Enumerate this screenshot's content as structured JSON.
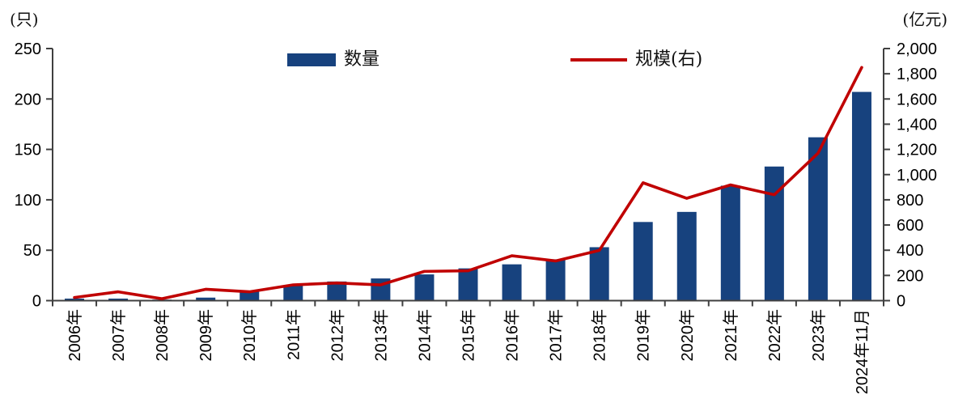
{
  "chart_data": {
    "type": "bar",
    "subtype": "bar+line dual axis",
    "title": "",
    "categories": [
      "2006年",
      "2007年",
      "2008年",
      "2009年",
      "2010年",
      "2011年",
      "2012年",
      "2013年",
      "2014年",
      "2015年",
      "2016年",
      "2017年",
      "2018年",
      "2019年",
      "2020年",
      "2021年",
      "2022年",
      "2023年",
      "2024年11月"
    ],
    "series": [
      {
        "name": "数量",
        "type": "bar",
        "axis": "left",
        "unit": "只",
        "color": "#17427E",
        "values": [
          2,
          2,
          1,
          3,
          10,
          15,
          19,
          22,
          26,
          32,
          36,
          41,
          53,
          78,
          88,
          114,
          133,
          162,
          207
        ]
      },
      {
        "name": "规模(右)",
        "type": "line",
        "axis": "right",
        "unit": "亿元",
        "color": "#C00000",
        "values": [
          25,
          70,
          15,
          90,
          70,
          125,
          140,
          125,
          232,
          237,
          356,
          315,
          399,
          935,
          812,
          918,
          840,
          1170,
          1850
        ]
      }
    ],
    "left_axis": {
      "label": "(只)",
      "min": 0,
      "max": 250,
      "step": 50,
      "ticks": [
        "0",
        "50",
        "100",
        "150",
        "200",
        "250"
      ]
    },
    "right_axis": {
      "label": "(亿元)",
      "min": 0,
      "max": 2000,
      "step": 200,
      "ticks": [
        "0",
        "200",
        "400",
        "600",
        "800",
        "1,000",
        "1,200",
        "1,400",
        "1,600",
        "1,800",
        "2,000"
      ]
    },
    "grid": false,
    "legend_position": "top-center",
    "axis_color": "#404040",
    "text_color": "#000000"
  }
}
